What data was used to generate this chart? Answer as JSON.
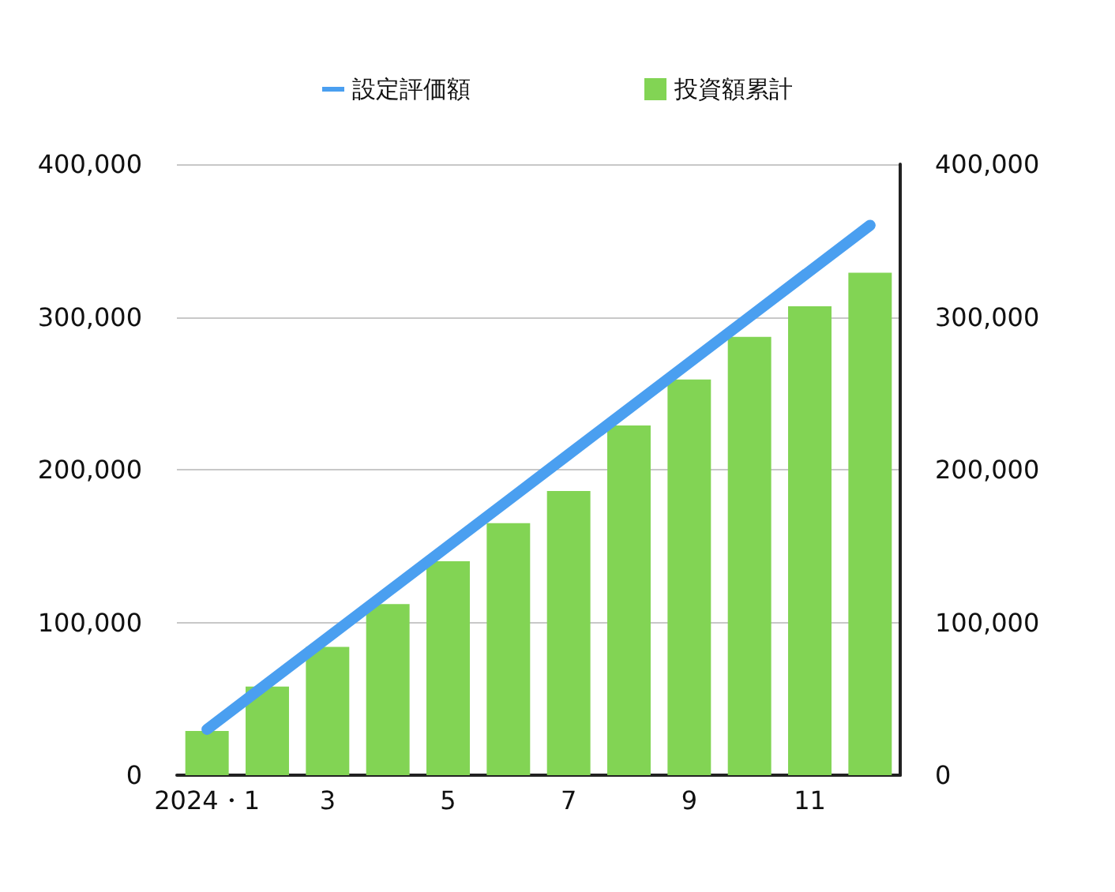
{
  "chart_data": {
    "type": "bar",
    "categories": [
      "2024・1",
      null,
      "3",
      null,
      "5",
      null,
      "7",
      null,
      "9",
      null,
      "11",
      null
    ],
    "series": [
      {
        "name": "設定評価額",
        "type": "line",
        "color": "#4a9ff0",
        "values": [
          30000,
          60000,
          90000,
          120000,
          150000,
          180000,
          210000,
          240000,
          270000,
          300000,
          330000,
          360000
        ]
      },
      {
        "name": "投資額累計",
        "color": "#82d454",
        "values": [
          29000,
          58000,
          84000,
          112000,
          140000,
          165000,
          186000,
          229000,
          259000,
          287000,
          307000,
          329000
        ]
      }
    ],
    "ylim": [
      0,
      400000
    ],
    "yticks": [
      0,
      {
        "value": 100000,
        "label": "100,000"
      },
      {
        "value": 200000,
        "label": "200,000"
      },
      {
        "value": 300000,
        "label": "300,000"
      },
      {
        "value": 400000,
        "label": "400,000"
      }
    ],
    "y2lim": [
      0,
      400000
    ],
    "y2ticks": [
      0,
      {
        "value": 100000,
        "label": "100,000"
      },
      {
        "value": 200000,
        "label": "200,000"
      },
      {
        "value": 300000,
        "label": "300,000"
      },
      {
        "value": 400000,
        "label": "400,000"
      }
    ],
    "grid": "y",
    "legend": "top",
    "line_style": "solid"
  }
}
